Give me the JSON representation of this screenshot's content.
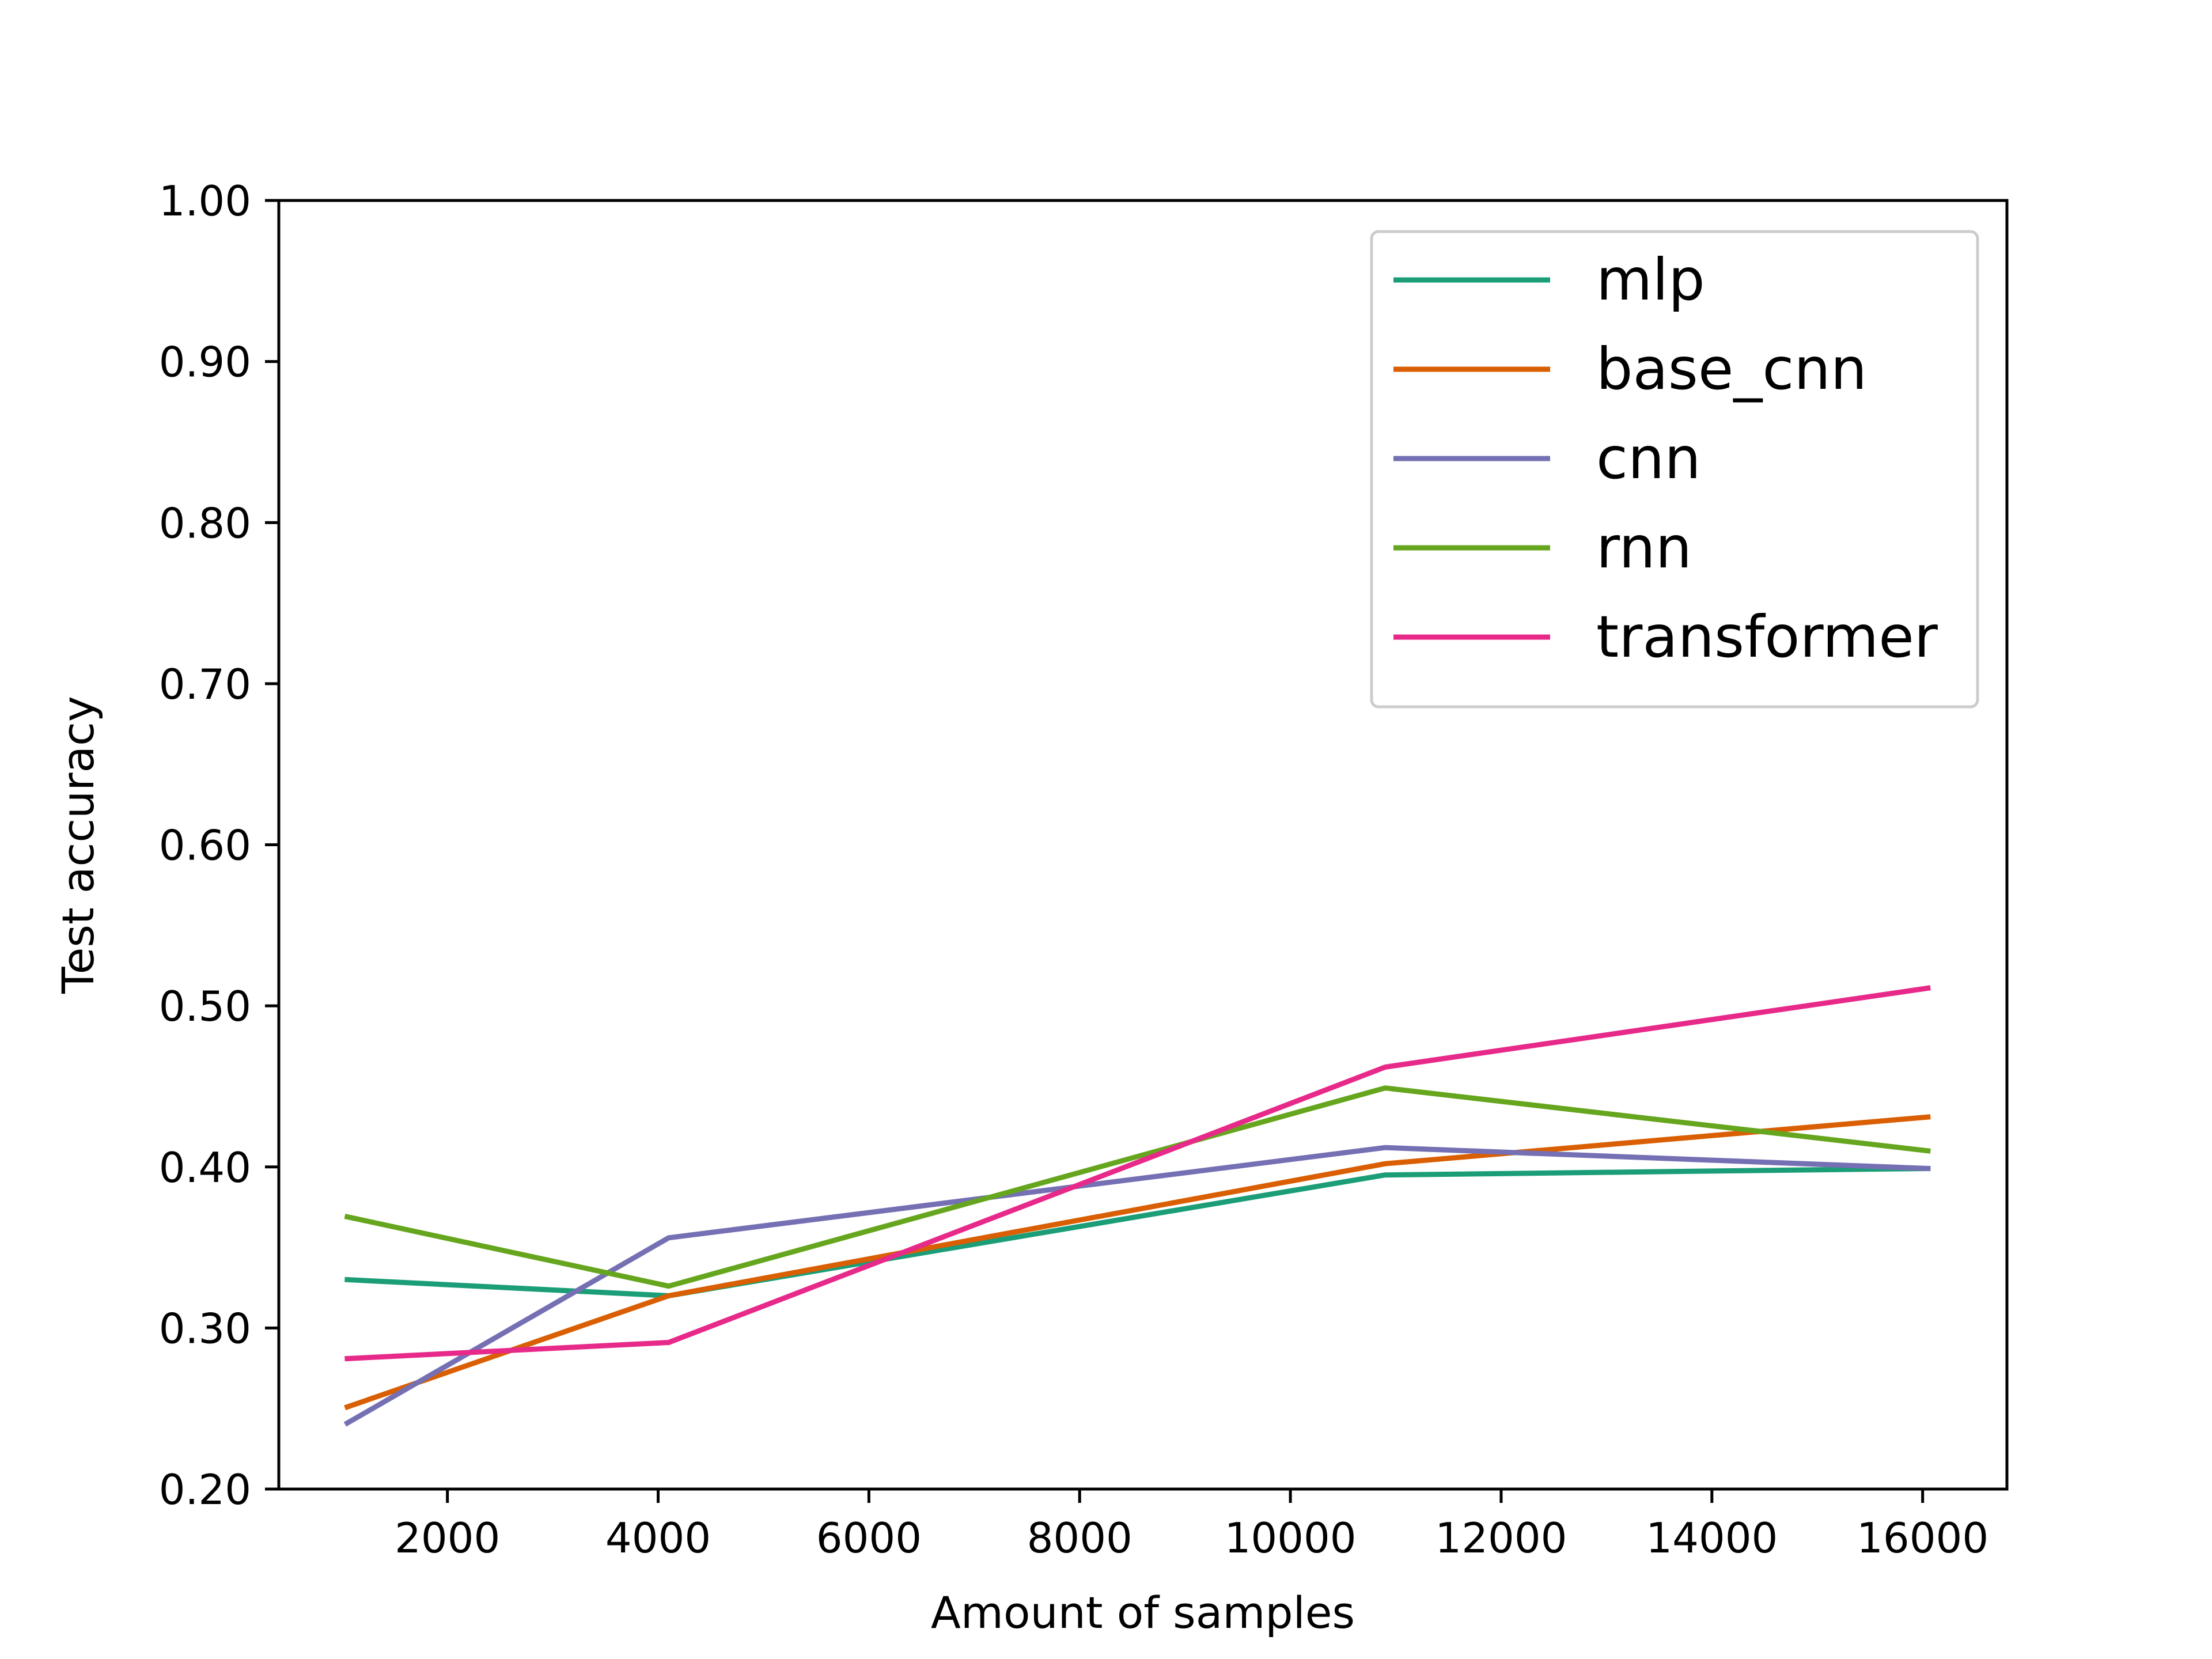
{
  "chart_data": {
    "type": "line",
    "title": "",
    "xlabel": "Amount of samples",
    "ylabel": "Test accuracy",
    "xlim": [
      400,
      16800
    ],
    "ylim": [
      0.2,
      1.0
    ],
    "xticks": [
      2000,
      4000,
      6000,
      8000,
      10000,
      12000,
      14000,
      16000
    ],
    "yticks": [
      0.2,
      0.3,
      0.4,
      0.5,
      0.6,
      0.7,
      0.8,
      0.9,
      1.0
    ],
    "ytick_labels": [
      "0.20",
      "0.30",
      "0.40",
      "0.50",
      "0.60",
      "0.70",
      "0.80",
      "0.90",
      "1.00"
    ],
    "grid": false,
    "legend_position": "top-right",
    "x": [
      1050,
      4100,
      10900,
      16050
    ],
    "series": [
      {
        "name": "mlp",
        "color": "#1b9e77",
        "values": [
          0.33,
          0.32,
          0.395,
          0.399
        ]
      },
      {
        "name": "base_cnn",
        "color": "#d95f02",
        "values": [
          0.251,
          0.32,
          0.402,
          0.431
        ]
      },
      {
        "name": "cnn",
        "color": "#7570b3",
        "values": [
          0.241,
          0.356,
          0.412,
          0.399
        ]
      },
      {
        "name": "rnn",
        "color": "#66a61e",
        "values": [
          0.369,
          0.326,
          0.449,
          0.41
        ]
      },
      {
        "name": "transformer",
        "color": "#e7298a",
        "values": [
          0.281,
          0.291,
          0.462,
          0.511
        ]
      }
    ]
  }
}
